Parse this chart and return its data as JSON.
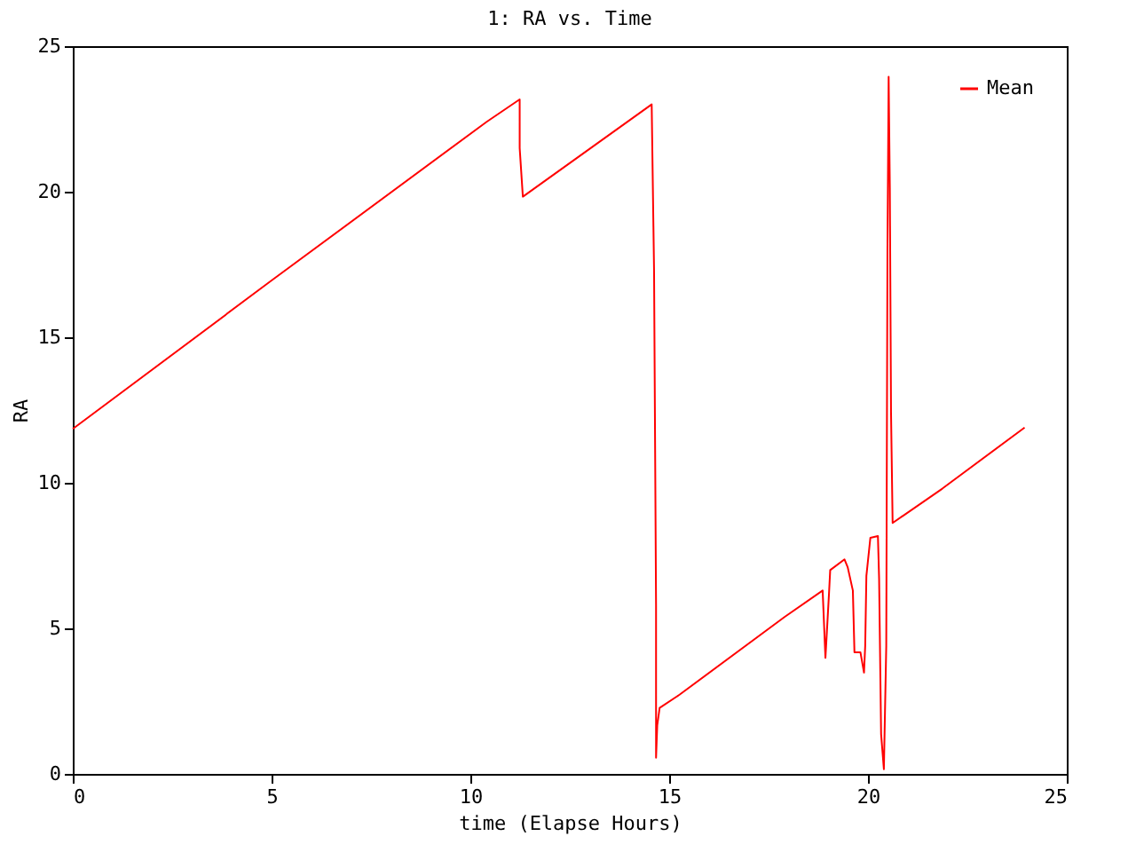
{
  "chart_data": {
    "type": "line",
    "title": "1: RA vs. Time",
    "xlabel": "time (Elapse Hours)",
    "ylabel": "RA",
    "xlim": [
      0,
      25
    ],
    "xticks": [
      0,
      5,
      10,
      15,
      20,
      25
    ],
    "ylim": [
      0,
      25
    ],
    "yticks": [
      0,
      5,
      10,
      15,
      20,
      25
    ],
    "grid": false,
    "line_style": "solid",
    "legend": "top right",
    "series": [
      {
        "name": "Mean",
        "color": "#ff0000",
        "x": [
          0,
          5,
          10.41,
          11.24,
          11.24,
          11.32,
          14.56,
          14.62,
          14.67,
          14.67,
          14.7,
          14.76,
          15.26,
          17.9,
          18.86,
          18.93,
          19.02,
          19.05,
          19.41,
          19.49,
          19.62,
          19.66,
          19.81,
          19.9,
          19.93,
          19.96,
          20.06,
          20.25,
          20.28,
          20.33,
          20.4,
          20.46,
          20.49,
          20.52,
          20.55,
          20.58,
          20.62,
          21.87,
          23.94
        ],
        "values": [
          11.85,
          16.95,
          22.4,
          23.17,
          21.5,
          19.83,
          23.0,
          17.27,
          5.8,
          0.56,
          1.67,
          2.27,
          2.72,
          5.39,
          6.3,
          3.99,
          6.2,
          7.0,
          7.37,
          7.1,
          6.3,
          4.18,
          4.18,
          3.48,
          4.39,
          6.8,
          8.11,
          8.17,
          6.7,
          1.37,
          0.16,
          4.4,
          17.98,
          23.95,
          20.1,
          12.4,
          8.62,
          9.8,
          11.9
        ]
      }
    ]
  }
}
